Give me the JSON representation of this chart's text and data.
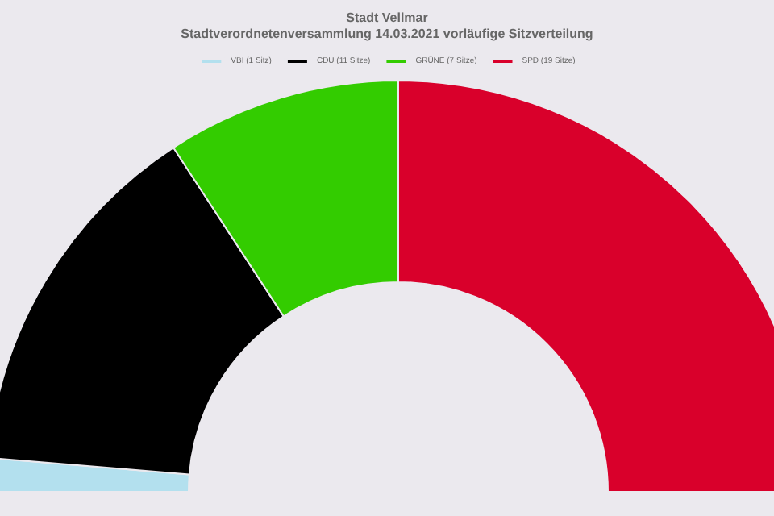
{
  "chart_data": {
    "type": "donut",
    "title": "Stadt Vellmar",
    "subtitle": "Stadtverordnetenversammlung 14.03.2021 vorläufige Sitzverteilung",
    "categories": [
      "VBI (1 Sitz)",
      "CDU (11 Sitze)",
      "GRÜNE (7 Sitze)",
      "SPD (19 Sitze)"
    ],
    "values": [
      1,
      11,
      7,
      19
    ],
    "colors": [
      "#b3e0ee",
      "#000000",
      "#33cc00",
      "#d9002b"
    ],
    "legend": "top"
  }
}
